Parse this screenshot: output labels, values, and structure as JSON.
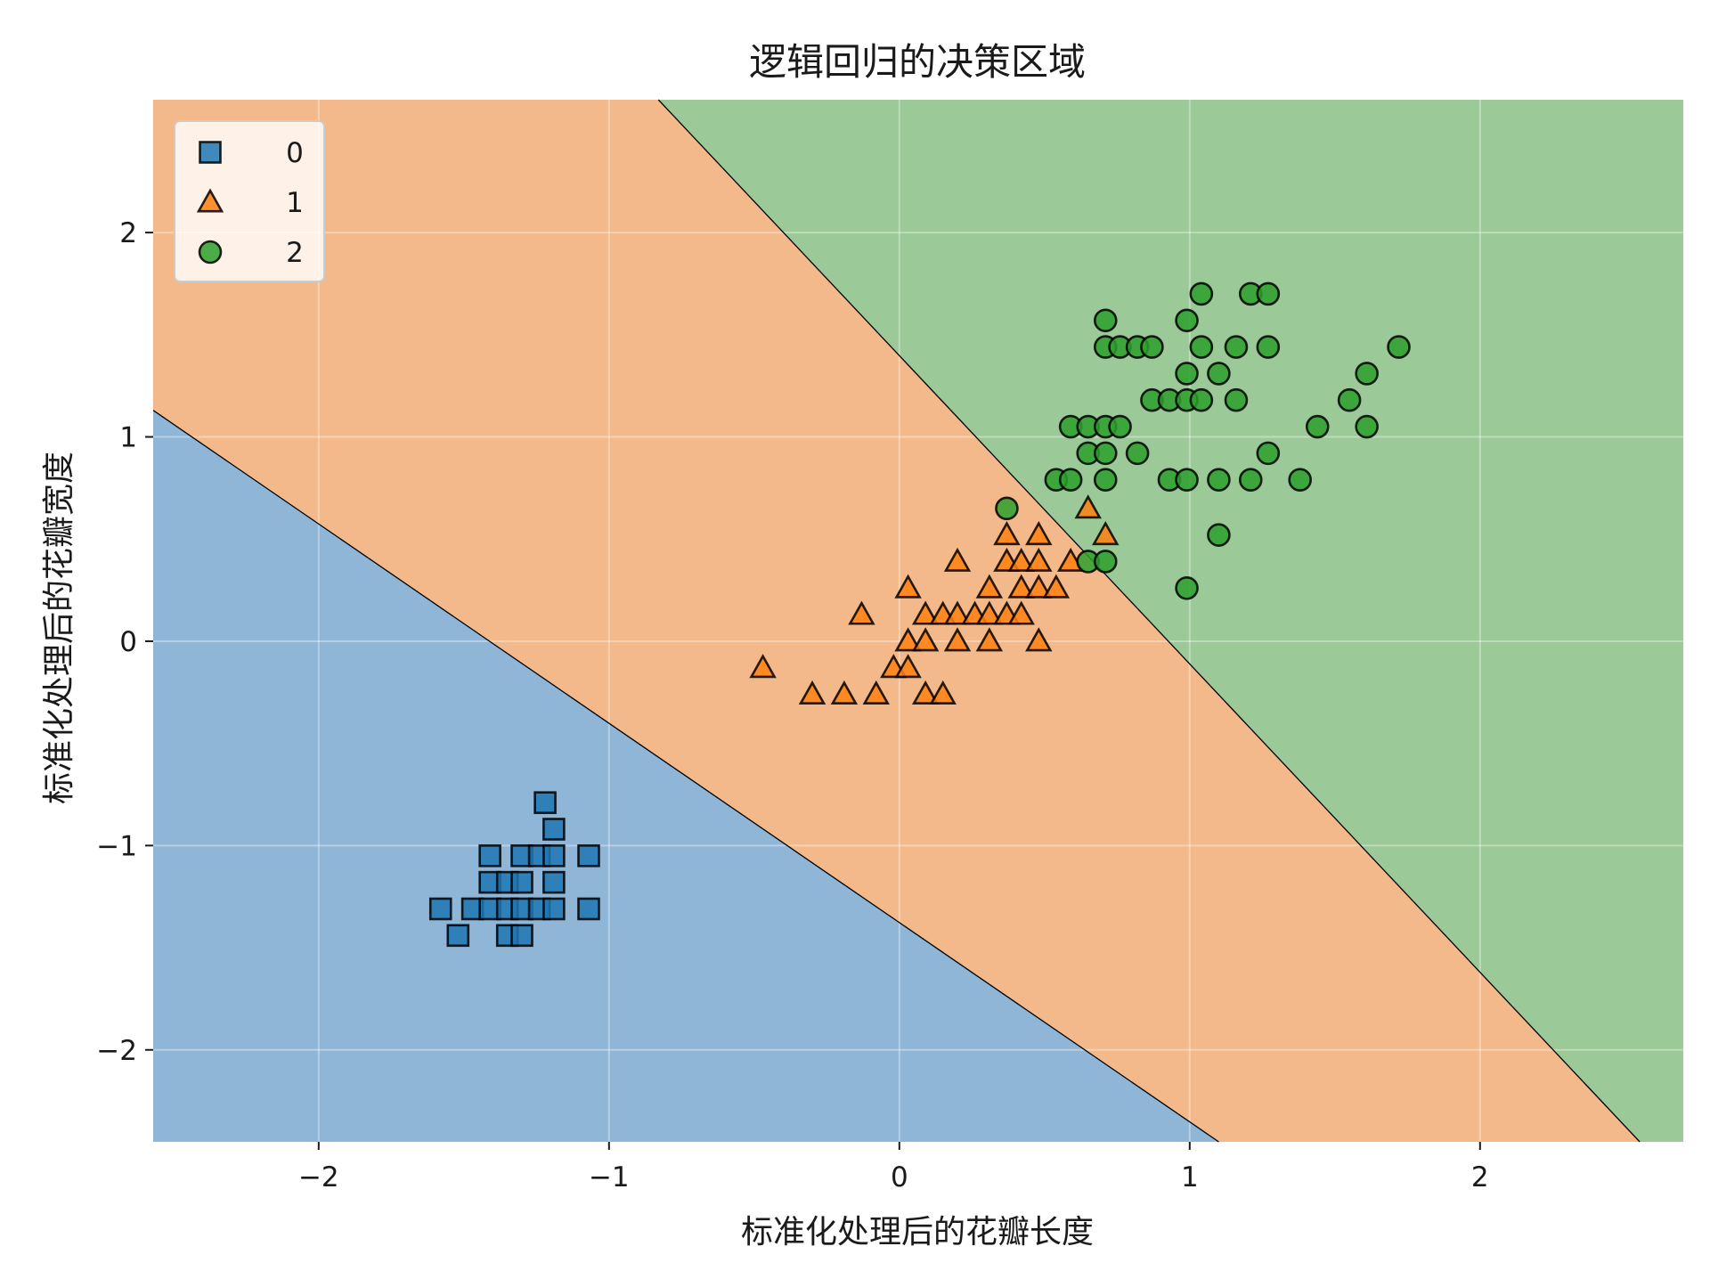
{
  "chart_data": {
    "type": "scatter",
    "title": "逻辑回归的决策区域",
    "xlabel": "标准化处理后的花瓣长度",
    "ylabel": "标准化处理后的花瓣宽度",
    "xlim": [
      -2.57,
      2.7
    ],
    "ylim": [
      -2.45,
      2.65
    ],
    "x_ticks": [
      -2,
      -1,
      0,
      1,
      2
    ],
    "y_ticks": [
      -2,
      -1,
      0,
      1,
      2
    ],
    "x_tick_labels": [
      "−2",
      "−1",
      "0",
      "1",
      "2"
    ],
    "y_tick_labels": [
      "−2",
      "−1",
      "0",
      "1",
      "2"
    ],
    "grid": true,
    "legend_position": "top-left",
    "decision_boundaries": [
      {
        "between": [
          "0",
          "1"
        ],
        "line": [
          [
            -2.57,
            1.13
          ],
          [
            1.1,
            -2.45
          ]
        ]
      },
      {
        "between": [
          "1",
          "2"
        ],
        "line": [
          [
            -0.83,
            2.65
          ],
          [
            2.55,
            -2.45
          ]
        ]
      }
    ],
    "regions": [
      {
        "class": "0",
        "color": "#8fb5d7"
      },
      {
        "class": "1",
        "color": "#f3b98a"
      },
      {
        "class": "2",
        "color": "#9bc997"
      }
    ],
    "series": [
      {
        "name": "0",
        "marker": "square",
        "color": "#1f77b4",
        "points": [
          [
            -1.22,
            -0.79
          ],
          [
            -1.19,
            -0.92
          ],
          [
            -1.41,
            -1.05
          ],
          [
            -1.3,
            -1.05
          ],
          [
            -1.24,
            -1.05
          ],
          [
            -1.19,
            -1.05
          ],
          [
            -1.07,
            -1.05
          ],
          [
            -1.41,
            -1.18
          ],
          [
            -1.35,
            -1.18
          ],
          [
            -1.3,
            -1.18
          ],
          [
            -1.19,
            -1.18
          ],
          [
            -1.58,
            -1.31
          ],
          [
            -1.47,
            -1.31
          ],
          [
            -1.41,
            -1.31
          ],
          [
            -1.35,
            -1.31
          ],
          [
            -1.3,
            -1.31
          ],
          [
            -1.24,
            -1.31
          ],
          [
            -1.19,
            -1.31
          ],
          [
            -1.07,
            -1.31
          ],
          [
            -1.52,
            -1.44
          ],
          [
            -1.35,
            -1.44
          ],
          [
            -1.3,
            -1.44
          ]
        ]
      },
      {
        "name": "1",
        "marker": "triangle",
        "color": "#ff7f0e",
        "points": [
          [
            -0.47,
            -0.13
          ],
          [
            -0.3,
            -0.26
          ],
          [
            -0.19,
            -0.26
          ],
          [
            -0.08,
            -0.26
          ],
          [
            0.09,
            -0.26
          ],
          [
            0.15,
            -0.26
          ],
          [
            -0.13,
            0.13
          ],
          [
            -0.02,
            -0.13
          ],
          [
            0.03,
            -0.13
          ],
          [
            0.03,
            0.0
          ],
          [
            0.09,
            0.0
          ],
          [
            0.2,
            0.0
          ],
          [
            0.31,
            0.0
          ],
          [
            0.48,
            0.0
          ],
          [
            0.03,
            0.26
          ],
          [
            0.09,
            0.13
          ],
          [
            0.15,
            0.13
          ],
          [
            0.2,
            0.13
          ],
          [
            0.26,
            0.13
          ],
          [
            0.31,
            0.13
          ],
          [
            0.37,
            0.13
          ],
          [
            0.42,
            0.13
          ],
          [
            0.2,
            0.39
          ],
          [
            0.31,
            0.26
          ],
          [
            0.42,
            0.26
          ],
          [
            0.48,
            0.26
          ],
          [
            0.54,
            0.26
          ],
          [
            0.37,
            0.39
          ],
          [
            0.42,
            0.39
          ],
          [
            0.48,
            0.39
          ],
          [
            0.59,
            0.39
          ],
          [
            0.37,
            0.52
          ],
          [
            0.48,
            0.52
          ],
          [
            0.71,
            0.52
          ],
          [
            0.65,
            0.65
          ]
        ]
      },
      {
        "name": "2",
        "marker": "circle",
        "color": "#2ca02c",
        "points": [
          [
            0.37,
            0.65
          ],
          [
            0.65,
            0.39
          ],
          [
            0.71,
            0.39
          ],
          [
            0.99,
            0.26
          ],
          [
            1.1,
            0.52
          ],
          [
            0.54,
            0.79
          ],
          [
            0.59,
            0.79
          ],
          [
            0.71,
            0.79
          ],
          [
            0.93,
            0.79
          ],
          [
            0.99,
            0.79
          ],
          [
            1.1,
            0.79
          ],
          [
            1.21,
            0.79
          ],
          [
            1.38,
            0.79
          ],
          [
            0.65,
            0.92
          ],
          [
            0.71,
            0.92
          ],
          [
            0.82,
            0.92
          ],
          [
            1.27,
            0.92
          ],
          [
            0.59,
            1.05
          ],
          [
            0.65,
            1.05
          ],
          [
            0.71,
            1.05
          ],
          [
            0.76,
            1.05
          ],
          [
            1.44,
            1.05
          ],
          [
            1.61,
            1.05
          ],
          [
            0.87,
            1.18
          ],
          [
            0.93,
            1.18
          ],
          [
            0.99,
            1.18
          ],
          [
            1.04,
            1.18
          ],
          [
            1.16,
            1.18
          ],
          [
            1.55,
            1.18
          ],
          [
            0.99,
            1.31
          ],
          [
            1.1,
            1.31
          ],
          [
            1.61,
            1.31
          ],
          [
            0.71,
            1.44
          ],
          [
            0.76,
            1.44
          ],
          [
            0.82,
            1.44
          ],
          [
            0.87,
            1.44
          ],
          [
            1.04,
            1.44
          ],
          [
            1.16,
            1.44
          ],
          [
            1.27,
            1.44
          ],
          [
            1.72,
            1.44
          ],
          [
            0.71,
            1.57
          ],
          [
            0.99,
            1.57
          ],
          [
            1.04,
            1.7
          ],
          [
            1.21,
            1.7
          ],
          [
            1.27,
            1.7
          ]
        ]
      }
    ],
    "legend": {
      "entries": [
        {
          "label": "0",
          "marker": "square",
          "color": "#1f77b4"
        },
        {
          "label": "1",
          "marker": "triangle",
          "color": "#ff7f0e"
        },
        {
          "label": "2",
          "marker": "circle",
          "color": "#2ca02c"
        }
      ]
    }
  }
}
